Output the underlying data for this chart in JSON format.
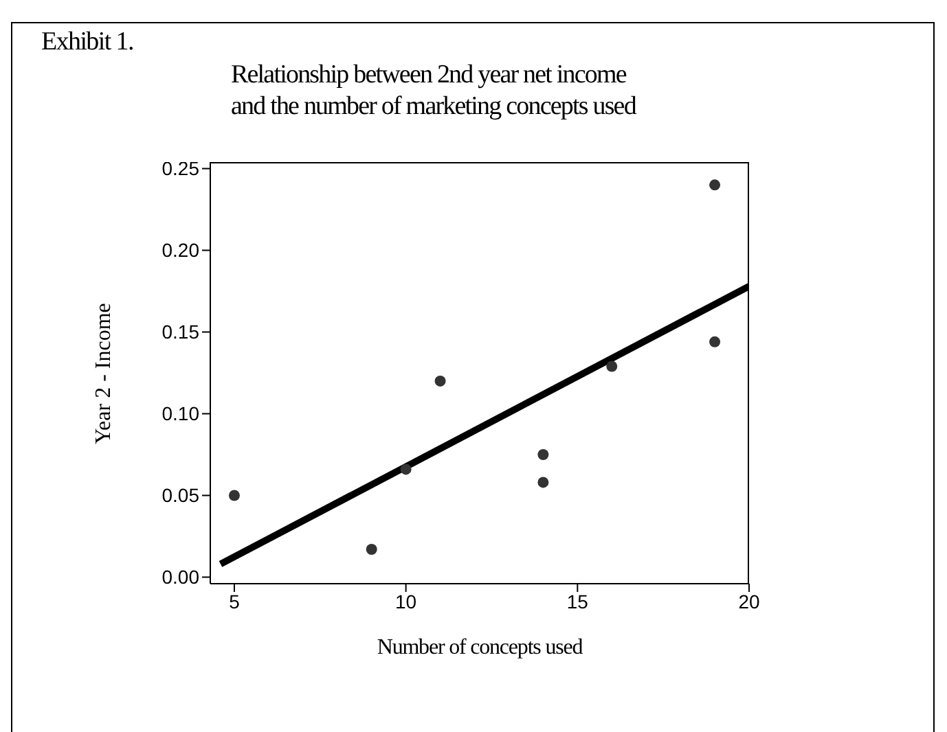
{
  "chart_data": {
    "type": "scatter",
    "title": "Relationship between 2nd year net income\nand the number of marketing concepts used",
    "xlabel": "Number of concepts used",
    "ylabel": "Year 2 - Income",
    "annotations": [
      "Exhibit 1."
    ],
    "series": [
      {
        "color": "#333333",
        "marker": "circle",
        "x": [
          5,
          9,
          10,
          11,
          14,
          14,
          16,
          19,
          19
        ],
        "values": [
          0.05,
          0.017,
          0.066,
          0.12,
          0.075,
          0.058,
          0.129,
          0.24,
          0.144
        ]
      },
      {
        "type": "line",
        "marker": "none",
        "color": "#000000",
        "x": [
          4.6,
          20
        ],
        "values": [
          0.008,
          0.178
        ]
      }
    ],
    "xlim": [
      4.3,
      20
    ],
    "xticks": [
      5,
      10,
      15,
      20
    ],
    "ylim": [
      -0.004,
      0.254
    ],
    "yticks": [
      {
        "value": 0,
        "label": "0.00"
      },
      {
        "value": 0.05,
        "label": "0.05"
      },
      {
        "value": 0.1,
        "label": "0.10"
      },
      {
        "value": 0.15,
        "label": "0.15"
      },
      {
        "value": 0.2,
        "label": "0.20"
      },
      {
        "value": 0.25,
        "label": "0.25"
      }
    ],
    "grid": false,
    "legend": false
  }
}
